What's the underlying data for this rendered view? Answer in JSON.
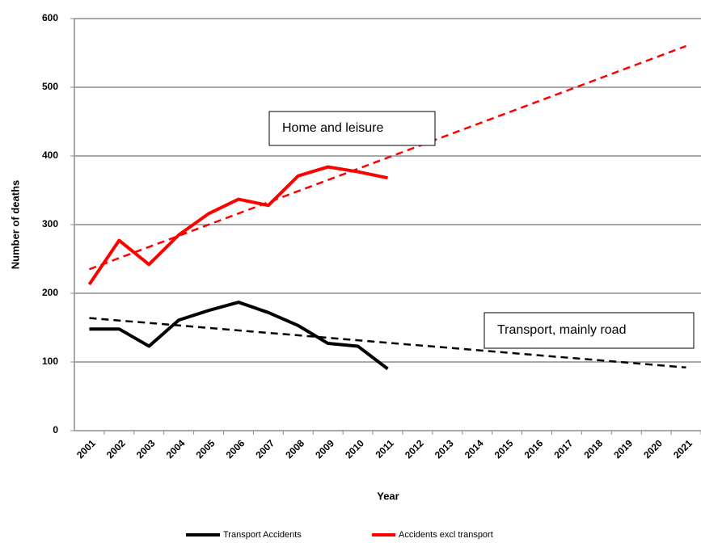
{
  "chart_data": {
    "type": "line",
    "x_label": "Year",
    "y_label": "Number of deaths",
    "categories": [
      "2001",
      "2002",
      "2003",
      "2004",
      "2005",
      "2006",
      "2007",
      "2008",
      "2009",
      "2010",
      "2011",
      "2012",
      "2013",
      "2014",
      "2015",
      "2016",
      "2017",
      "2018",
      "2019",
      "2020",
      "2021"
    ],
    "series": [
      {
        "name": "Transport Accidents",
        "color": "#000000",
        "values": [
          148,
          148,
          123,
          161,
          175,
          187,
          172,
          153,
          127,
          123,
          90,
          null,
          null,
          null,
          null,
          null,
          null,
          null,
          null,
          null,
          null
        ]
      },
      {
        "name": "Accidents excl transport",
        "color": "#ff0000",
        "values": [
          213,
          277,
          242,
          285,
          316,
          337,
          328,
          371,
          384,
          377,
          368,
          null,
          null,
          null,
          null,
          null,
          null,
          null,
          null,
          null,
          null
        ]
      }
    ],
    "trendlines": [
      {
        "color": "#000000",
        "values": [
          164,
          92
        ]
      },
      {
        "color": "#ff0000",
        "values": [
          235,
          560
        ]
      }
    ],
    "annotations": [
      "Home and leisure",
      "Transport, mainly road"
    ],
    "ylim": [
      0,
      600
    ],
    "yticks": [
      0,
      100,
      200,
      300,
      400,
      500,
      600
    ],
    "grid": true
  }
}
